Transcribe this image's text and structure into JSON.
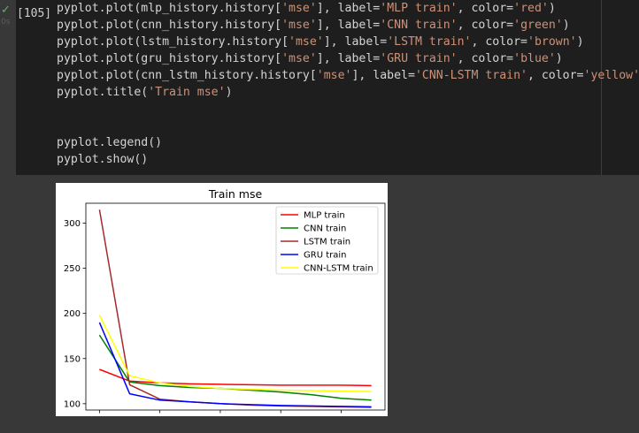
{
  "cell": {
    "status_icon": "check-icon",
    "duration": "0s",
    "execution_count": "[105]",
    "code_lines": [
      [
        {
          "t": "pyplot.plot(mlp_history.history["
        },
        {
          "t": "'mse'",
          "s": 1
        },
        {
          "t": "], label="
        },
        {
          "t": "'MLP train'",
          "s": 1
        },
        {
          "t": ", color="
        },
        {
          "t": "'red'",
          "s": 1
        },
        {
          "t": ")"
        }
      ],
      [
        {
          "t": "pyplot.plot(cnn_history.history["
        },
        {
          "t": "'mse'",
          "s": 1
        },
        {
          "t": "], label="
        },
        {
          "t": "'CNN train'",
          "s": 1
        },
        {
          "t": ", color="
        },
        {
          "t": "'green'",
          "s": 1
        },
        {
          "t": ")"
        }
      ],
      [
        {
          "t": "pyplot.plot(lstm_history.history["
        },
        {
          "t": "'mse'",
          "s": 1
        },
        {
          "t": "], label="
        },
        {
          "t": "'LSTM train'",
          "s": 1
        },
        {
          "t": ", color="
        },
        {
          "t": "'brown'",
          "s": 1
        },
        {
          "t": ")"
        }
      ],
      [
        {
          "t": "pyplot.plot(gru_history.history["
        },
        {
          "t": "'mse'",
          "s": 1
        },
        {
          "t": "], label="
        },
        {
          "t": "'GRU train'",
          "s": 1
        },
        {
          "t": ", color="
        },
        {
          "t": "'blue'",
          "s": 1
        },
        {
          "t": ")"
        }
      ],
      [
        {
          "t": "pyplot.plot(cnn_lstm_history.history["
        },
        {
          "t": "'mse'",
          "s": 1
        },
        {
          "t": "], label="
        },
        {
          "t": "'CNN-LSTM train'",
          "s": 1
        },
        {
          "t": ", color="
        },
        {
          "t": "'yellow'",
          "s": 1
        },
        {
          "t": ")"
        }
      ],
      [
        {
          "t": "pyplot.title("
        },
        {
          "t": "'Train mse'",
          "s": 1
        },
        {
          "t": ")"
        }
      ],
      [],
      [],
      [
        {
          "t": "pyplot.legend()"
        }
      ],
      [
        {
          "t": "pyplot.show()"
        }
      ]
    ]
  },
  "chart_data": {
    "type": "line",
    "title": "Train mse",
    "xlabel": "",
    "ylabel": "",
    "xlim": [
      -0.45,
      9.45
    ],
    "ylim": [
      93,
      322
    ],
    "xticks": [
      0,
      2,
      4,
      6,
      8
    ],
    "yticks": [
      100,
      150,
      200,
      250,
      300
    ],
    "grid": false,
    "legend_position": "top-right",
    "x": [
      0,
      1,
      2,
      3,
      4,
      5,
      6,
      7,
      8,
      9
    ],
    "series": [
      {
        "name": "MLP train",
        "color": "#ff0000",
        "values": [
          138,
          125,
          123,
          122,
          121.5,
          121,
          120.5,
          120.5,
          120.5,
          120
        ]
      },
      {
        "name": "CNN train",
        "color": "#008000",
        "values": [
          176,
          124,
          120,
          118,
          117,
          115,
          113,
          110,
          106,
          104
        ]
      },
      {
        "name": "LSTM train",
        "color": "#a52a2a",
        "values": [
          315,
          121,
          105,
          102,
          100,
          98.5,
          97.5,
          97,
          96.5,
          96
        ]
      },
      {
        "name": "GRU train",
        "color": "#0000ff",
        "values": [
          190,
          111,
          104,
          102,
          100,
          99,
          98,
          97.5,
          97,
          96.5
        ]
      },
      {
        "name": "CNN-LSTM train",
        "color": "#ffff00",
        "values": [
          198,
          131,
          123,
          119,
          117,
          116,
          115,
          114.5,
          114,
          113.5
        ]
      }
    ]
  }
}
